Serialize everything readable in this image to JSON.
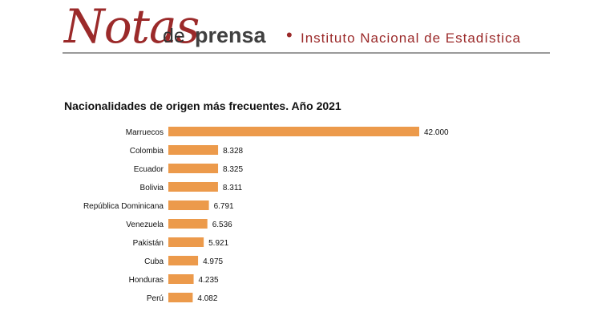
{
  "header": {
    "logo_word": "Notas",
    "de": "de",
    "prensa": "prensa",
    "separator": "•",
    "institution": "Instituto Nacional de Estadística",
    "brand_color": "#9b2a2a"
  },
  "chart_data": {
    "type": "bar",
    "orientation": "horizontal",
    "title": "Nacionalidades de origen más frecuentes. Año 2021",
    "categories": [
      "Marruecos",
      "Colombia",
      "Ecuador",
      "Bolivia",
      "República Dominicana",
      "Venezuela",
      "Pakistán",
      "Cuba",
      "Honduras",
      "Perú"
    ],
    "values": [
      42000,
      8328,
      8325,
      8311,
      6791,
      6536,
      5921,
      4975,
      4235,
      4082
    ],
    "value_labels": [
      "42.000",
      "8.328",
      "8.325",
      "8.311",
      "6.791",
      "6.536",
      "5.921",
      "4.975",
      "4.235",
      "4.082"
    ],
    "bar_color": "#ec9a4b",
    "xlim": [
      0,
      42000
    ],
    "grid": false,
    "legend": "none"
  }
}
